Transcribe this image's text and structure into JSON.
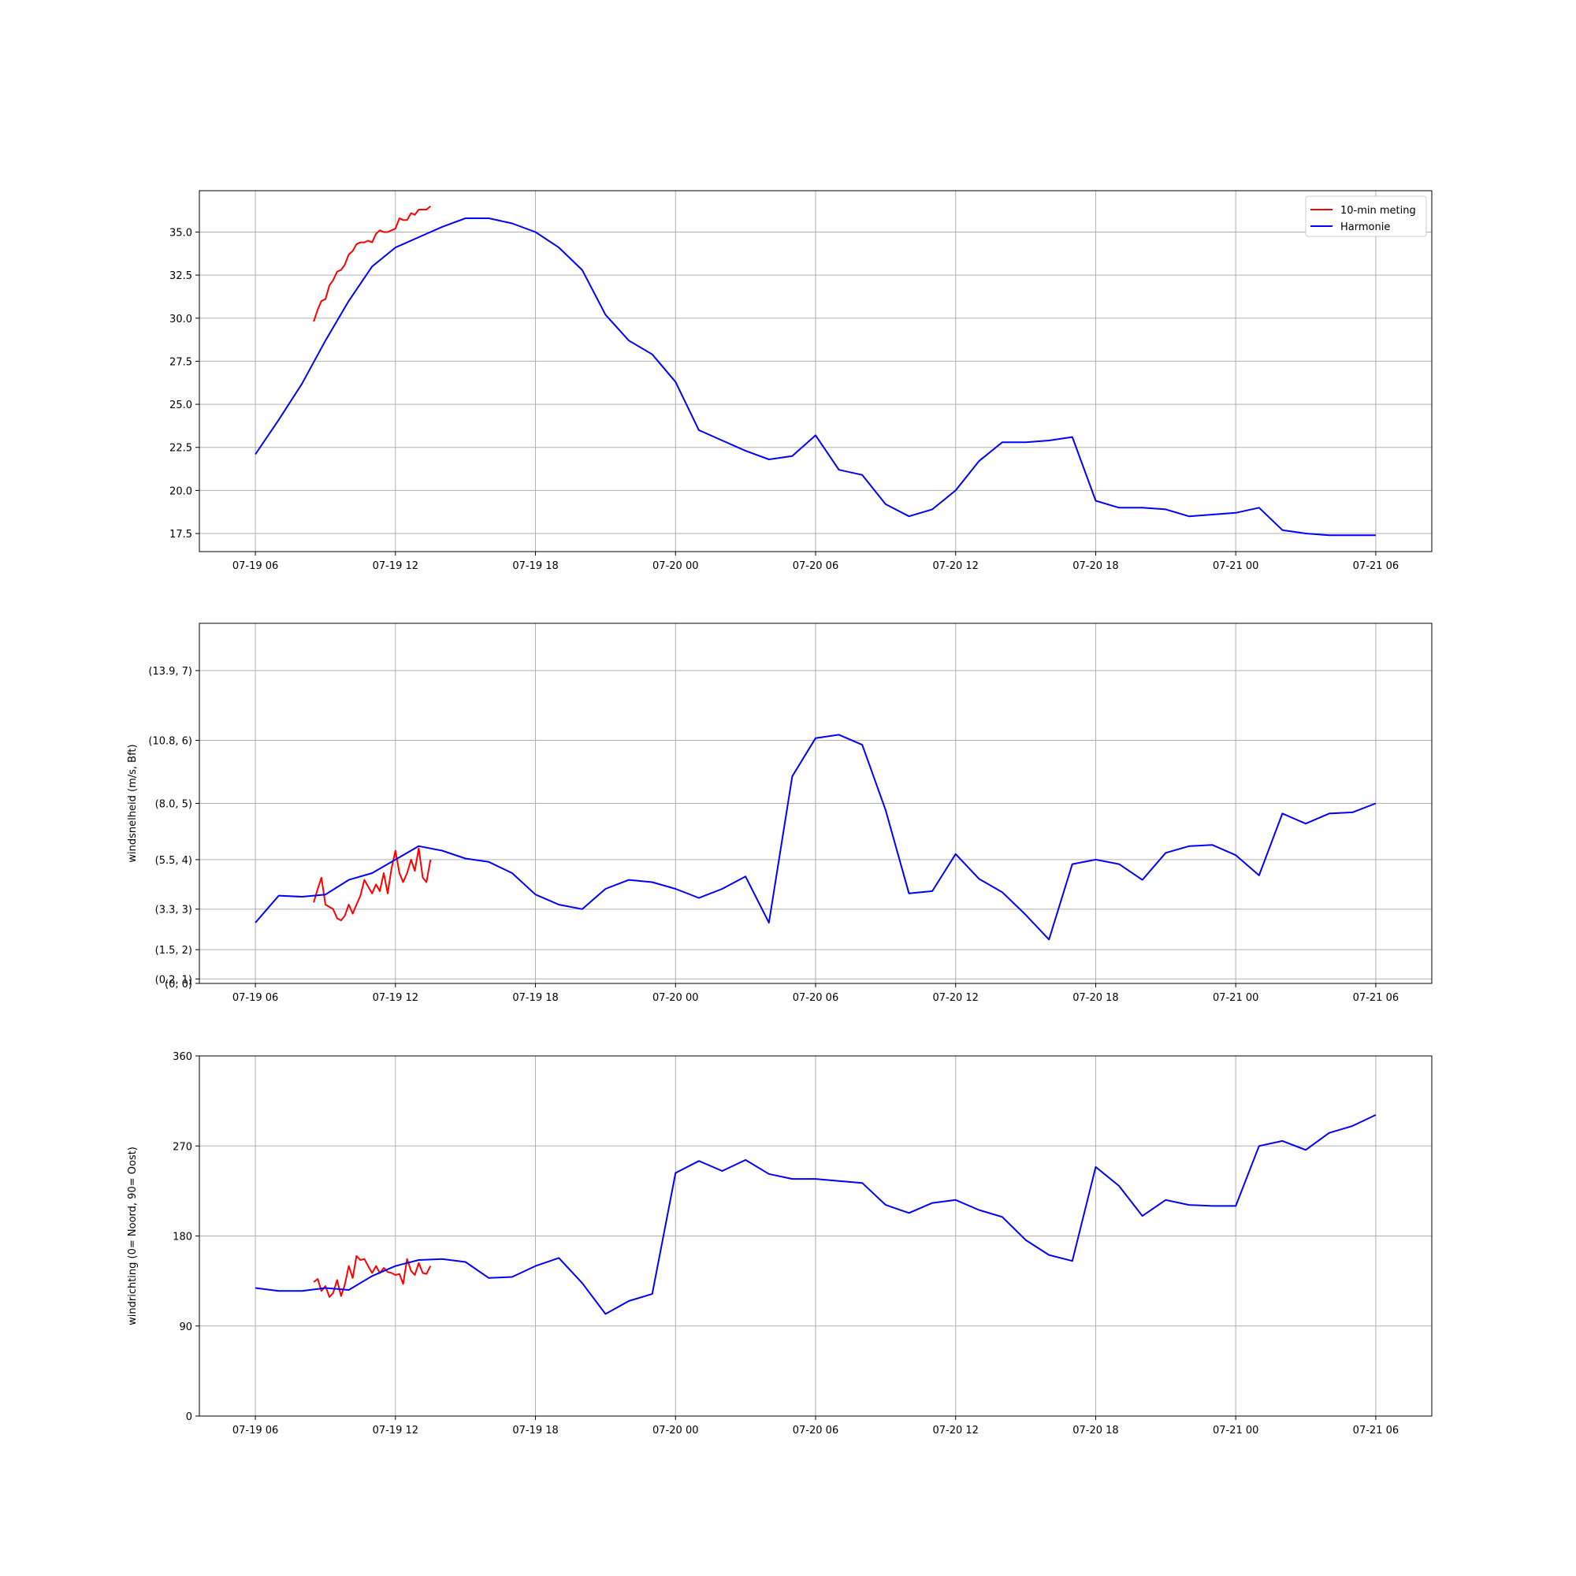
{
  "chart_data": [
    {
      "type": "line",
      "title": "",
      "xlabel": "",
      "ylabel": "",
      "x_tick_labels": [
        "07-19 06",
        "07-19 12",
        "07-19 18",
        "07-20 00",
        "07-20 06",
        "07-20 12",
        "07-20 18",
        "07-21 00",
        "07-21 06"
      ],
      "y_ticks": [
        17.5,
        20.0,
        22.5,
        25.0,
        27.5,
        30.0,
        32.5,
        35.0
      ],
      "y_tick_labels": [
        "17.5",
        "20.0",
        "22.5",
        "25.0",
        "27.5",
        "30.0",
        "32.5",
        "35.0"
      ],
      "ylim": [
        16.45,
        37.4
      ],
      "xlim_hours": [
        -2.4,
        50.4
      ],
      "grid": true,
      "legend": {
        "position": "upper right",
        "entries": [
          "10-min meting",
          "Harmonie"
        ]
      },
      "series": [
        {
          "name": "10-min meting",
          "color": "#ff0000",
          "x_hours": [
            2.5,
            2.67,
            2.83,
            3.0,
            3.17,
            3.33,
            3.5,
            3.67,
            3.83,
            4.0,
            4.17,
            4.33,
            4.5,
            4.67,
            4.83,
            5.0,
            5.17,
            5.33,
            5.5,
            5.67,
            5.83,
            6.0,
            6.17,
            6.33,
            6.5,
            6.67,
            6.83,
            7.0,
            7.17,
            7.33,
            7.5
          ],
          "values": [
            29.8,
            30.5,
            31.0,
            31.1,
            31.9,
            32.2,
            32.7,
            32.8,
            33.1,
            33.7,
            33.9,
            34.3,
            34.4,
            34.4,
            34.5,
            34.4,
            34.9,
            35.1,
            35.0,
            35.0,
            35.1,
            35.2,
            35.8,
            35.7,
            35.7,
            36.1,
            36.0,
            36.3,
            36.3,
            36.3,
            36.5
          ]
        },
        {
          "name": "Harmonie",
          "color": "#0000ff",
          "x_hours": [
            0,
            1,
            2,
            3,
            4,
            5,
            6,
            7,
            8,
            9,
            10,
            11,
            12,
            13,
            14,
            15,
            16,
            17,
            18,
            19,
            20,
            21,
            22,
            23,
            24,
            25,
            26,
            27,
            28,
            29,
            30,
            31,
            32,
            33,
            34,
            35,
            36,
            37,
            38,
            39,
            40,
            41,
            42,
            43,
            44,
            45,
            46,
            47,
            48
          ],
          "values": [
            22.1,
            24.1,
            26.2,
            28.7,
            31.0,
            33.0,
            34.1,
            34.7,
            35.3,
            35.8,
            35.8,
            35.5,
            35.0,
            34.1,
            32.8,
            30.2,
            28.7,
            27.9,
            26.3,
            23.5,
            22.9,
            22.3,
            21.8,
            22.0,
            23.2,
            21.2,
            20.9,
            19.2,
            18.5,
            18.9,
            20.0,
            21.7,
            22.8,
            22.8,
            22.9,
            23.1,
            19.4,
            19.0,
            19.0,
            18.9,
            18.5,
            18.6,
            18.7,
            19.0,
            17.7,
            17.5,
            17.4,
            17.4,
            17.4
          ]
        }
      ]
    },
    {
      "type": "line",
      "title": "",
      "xlabel": "",
      "ylabel": "windsnelheid (m/s, Bft)",
      "x_tick_labels": [
        "07-19 06",
        "07-19 12",
        "07-19 18",
        "07-20 00",
        "07-20 06",
        "07-20 12",
        "07-20 18",
        "07-21 00",
        "07-21 06"
      ],
      "y_ticks": [
        0.0,
        0.2,
        1.5,
        3.3,
        5.5,
        8.0,
        10.8,
        13.9
      ],
      "y_tick_labels": [
        "(0, 0)",
        "(0.2, 1)",
        "(1.5, 2)",
        "(3.3, 3)",
        "(5.5, 4)",
        "(8.0, 5)",
        "(10.8, 6)",
        "(13.9, 7)"
      ],
      "ylim": [
        0.0,
        16.0
      ],
      "xlim_hours": [
        -2.4,
        50.4
      ],
      "grid": true,
      "series": [
        {
          "name": "10-min meting",
          "color": "#ff0000",
          "x_hours": [
            2.5,
            2.67,
            2.83,
            3.0,
            3.17,
            3.33,
            3.5,
            3.67,
            3.83,
            4.0,
            4.17,
            4.33,
            4.5,
            4.67,
            4.83,
            5.0,
            5.17,
            5.33,
            5.5,
            5.67,
            5.83,
            6.0,
            6.17,
            6.33,
            6.5,
            6.67,
            6.83,
            7.0,
            7.17,
            7.33,
            7.5
          ],
          "values": [
            3.6,
            4.2,
            4.7,
            3.5,
            3.4,
            3.3,
            2.9,
            2.8,
            3.0,
            3.5,
            3.1,
            3.5,
            3.9,
            4.6,
            4.3,
            4.0,
            4.4,
            4.1,
            4.9,
            4.0,
            5.1,
            5.9,
            4.9,
            4.5,
            4.9,
            5.5,
            5.0,
            6.0,
            4.7,
            4.5,
            5.5
          ]
        },
        {
          "name": "Harmonie",
          "color": "#0000ff",
          "x_hours": [
            0,
            1,
            2,
            3,
            4,
            5,
            6,
            7,
            8,
            9,
            10,
            11,
            12,
            13,
            14,
            15,
            16,
            17,
            18,
            19,
            20,
            21,
            22,
            23,
            24,
            25,
            26,
            27,
            28,
            29,
            30,
            31,
            32,
            33,
            34,
            35,
            36,
            37,
            38,
            39,
            40,
            41,
            42,
            43,
            44,
            45,
            46,
            47,
            48
          ],
          "values": [
            2.7,
            3.9,
            3.85,
            3.95,
            4.6,
            4.9,
            5.5,
            6.1,
            5.9,
            5.55,
            5.4,
            4.9,
            3.95,
            3.5,
            3.3,
            4.2,
            4.6,
            4.5,
            4.2,
            3.8,
            4.2,
            4.75,
            2.7,
            9.2,
            10.9,
            11.05,
            10.6,
            7.7,
            4.0,
            4.1,
            5.75,
            4.65,
            4.05,
            3.05,
            1.95,
            5.3,
            5.5,
            5.3,
            4.6,
            5.8,
            6.1,
            6.15,
            5.7,
            4.8,
            7.55,
            7.1,
            7.55,
            7.6,
            8.0
          ]
        }
      ]
    },
    {
      "type": "line",
      "title": "",
      "xlabel": "",
      "ylabel": "windrichting (0= Noord, 90= Oost)",
      "x_tick_labels": [
        "07-19 06",
        "07-19 12",
        "07-19 18",
        "07-20 00",
        "07-20 06",
        "07-20 12",
        "07-20 18",
        "07-21 00",
        "07-21 06"
      ],
      "y_ticks": [
        0,
        90,
        180,
        270,
        360
      ],
      "y_tick_labels": [
        "0",
        "90",
        "180",
        "270",
        "360"
      ],
      "ylim": [
        0,
        360
      ],
      "xlim_hours": [
        -2.4,
        50.4
      ],
      "grid": true,
      "series": [
        {
          "name": "10-min meting",
          "color": "#ff0000",
          "x_hours": [
            2.5,
            2.67,
            2.83,
            3.0,
            3.17,
            3.33,
            3.5,
            3.67,
            3.83,
            4.0,
            4.17,
            4.33,
            4.5,
            4.67,
            4.83,
            5.0,
            5.17,
            5.33,
            5.5,
            5.67,
            5.83,
            6.0,
            6.17,
            6.33,
            6.5,
            6.67,
            6.83,
            7.0,
            7.17,
            7.33,
            7.5
          ],
          "values": [
            134,
            137,
            125,
            130,
            119,
            123,
            136,
            120,
            131,
            150,
            138,
            160,
            156,
            157,
            150,
            143,
            150,
            143,
            148,
            144,
            143,
            141,
            142,
            132,
            157,
            145,
            141,
            153,
            143,
            142,
            150
          ]
        },
        {
          "name": "Harmonie",
          "color": "#0000ff",
          "x_hours": [
            0,
            1,
            2,
            3,
            4,
            5,
            6,
            7,
            8,
            9,
            10,
            11,
            12,
            13,
            14,
            15,
            16,
            17,
            18,
            19,
            20,
            21,
            22,
            23,
            24,
            25,
            26,
            27,
            28,
            29,
            30,
            31,
            32,
            33,
            34,
            35,
            36,
            37,
            38,
            39,
            40,
            41,
            42,
            43,
            44,
            45,
            46,
            47,
            48
          ],
          "values": [
            128,
            125,
            125,
            128,
            126,
            140,
            150,
            156,
            157,
            154,
            138,
            139,
            150,
            158,
            133,
            102,
            115,
            122,
            243,
            255,
            245,
            256,
            242,
            237,
            237,
            235,
            233,
            211,
            203,
            213,
            216,
            206,
            199,
            176,
            161,
            155,
            249,
            230,
            200,
            216,
            211,
            210,
            210,
            270,
            275,
            266,
            283,
            290,
            301
          ]
        }
      ]
    }
  ]
}
